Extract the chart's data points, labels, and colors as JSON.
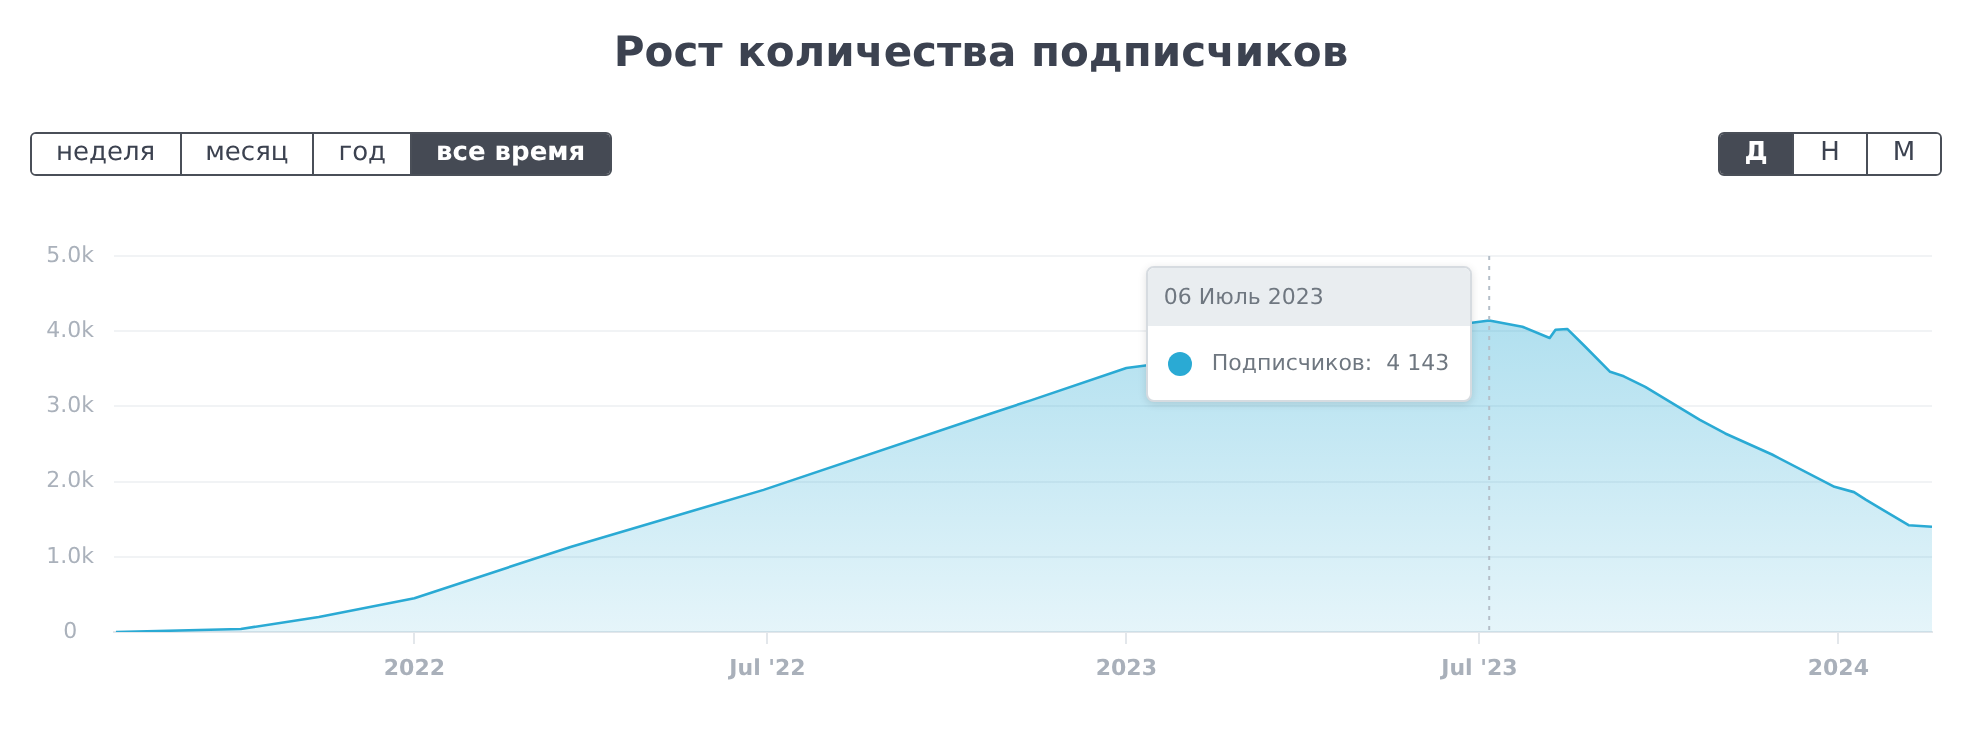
{
  "chart_data": {
    "type": "area",
    "title": "Рост количества подписчиков",
    "x": [
      "2021-08-01",
      "2021-10-04",
      "2021-11-13",
      "2022-01-01",
      "2022-03-22",
      "2022-06-29",
      "2022-10-24",
      "2022-11-13",
      "2023-01-01",
      "2023-04-01",
      "2023-06-01",
      "2023-07-06",
      "2023-07-23",
      "2023-08-06",
      "2023-08-09",
      "2023-08-15",
      "2023-08-24",
      "2023-09-06",
      "2023-09-13",
      "2023-09-24",
      "2023-10-22",
      "2023-11-04",
      "2023-11-28",
      "2023-12-30",
      "2024-01-09",
      "2024-01-15",
      "2024-02-06",
      "2024-02-18"
    ],
    "series": [
      {
        "color": "#2aaad4",
        "values": [
          0,
          40,
          200,
          450,
          1130,
          1890,
          2910,
          3080,
          3510,
          null,
          null,
          4143,
          4060,
          3910,
          4020,
          4030,
          3800,
          3460,
          3400,
          3260,
          2820,
          2640,
          2360,
          1930,
          1860,
          1760,
          1420,
          1400
        ]
      }
    ],
    "xlim": [
      "2021-07-31",
      "2024-02-18"
    ],
    "xticks": [
      {
        "value": "2022-01-01",
        "label": "2022"
      },
      {
        "value": "2022-07-01",
        "label": "Jul '22"
      },
      {
        "value": "2023-01-01",
        "label": "2023"
      },
      {
        "value": "2023-07-01",
        "label": "Jul '23"
      },
      {
        "value": "2024-01-01",
        "label": "2024"
      }
    ],
    "ylim": [
      0,
      5000
    ],
    "yticks": [
      0,
      {
        "value": 1000,
        "label": "1.0k"
      },
      {
        "value": 2000,
        "label": "2.0k"
      },
      {
        "value": 3000,
        "label": "3.0k"
      },
      {
        "value": 4000,
        "label": "4.0k"
      },
      {
        "value": 5000,
        "label": "5.0k"
      }
    ],
    "grid": "y",
    "legend": false,
    "marker": "none",
    "line_style": "solid",
    "ref_lines": [
      {
        "axis": "x",
        "value": "2023-07-06",
        "color": "#b4bec8",
        "line_style": "dotted"
      }
    ],
    "annotations": [
      "06 Июль 2023",
      "Подписчиков:  4 143",
      "неделя",
      "месяц",
      "год",
      "все время",
      "Д",
      "Н",
      "М"
    ]
  }
}
